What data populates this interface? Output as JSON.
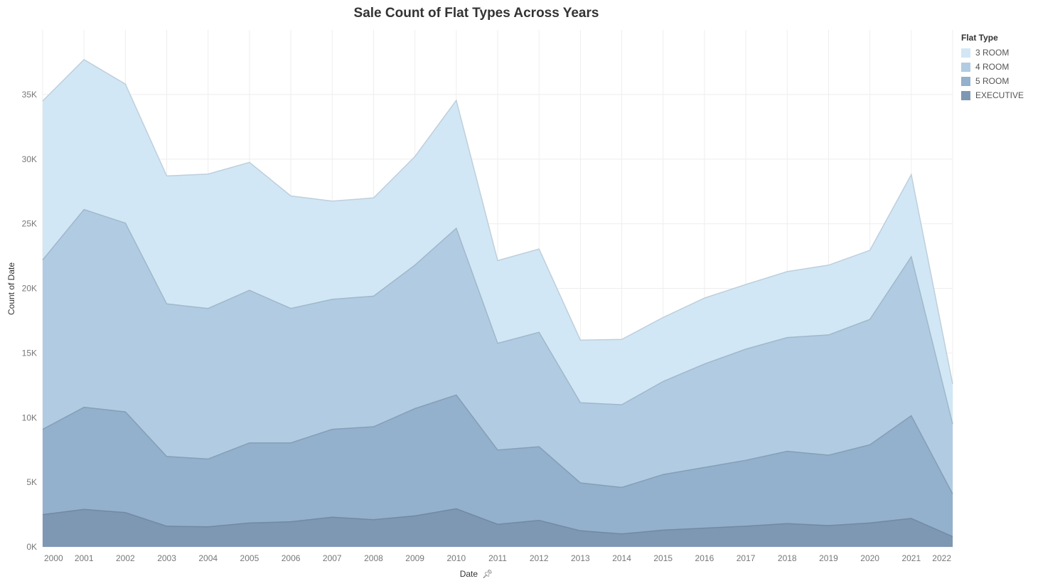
{
  "chart_data": {
    "type": "area",
    "stacked": true,
    "title": "Sale Count of Flat Types Across Years",
    "xlabel": "Date",
    "ylabel": "Count of Date",
    "ylim": [
      0,
      40000
    ],
    "grid": true,
    "legend_position": "top-right",
    "legend_title": "Flat Type",
    "categories": [
      "2000",
      "2001",
      "2002",
      "2003",
      "2004",
      "2005",
      "2006",
      "2007",
      "2008",
      "2009",
      "2010",
      "2011",
      "2012",
      "2013",
      "2014",
      "2015",
      "2016",
      "2017",
      "2018",
      "2019",
      "2020",
      "2021",
      "2022"
    ],
    "y_ticks": [
      0,
      5000,
      10000,
      15000,
      20000,
      25000,
      30000,
      35000
    ],
    "y_tick_labels": [
      "0K",
      "5K",
      "10K",
      "15K",
      "20K",
      "25K",
      "30K",
      "35K"
    ],
    "series": [
      {
        "name": "EXECUTIVE",
        "color": "#7e98b3",
        "values": [
          2500,
          2900,
          2650,
          1600,
          1550,
          1850,
          1950,
          2300,
          2100,
          2400,
          2950,
          1750,
          2050,
          1250,
          1000,
          1300,
          1450,
          1600,
          1800,
          1650,
          1850,
          2200,
          800
        ]
      },
      {
        "name": "5 ROOM",
        "color": "#93b0cc",
        "values": [
          6600,
          7900,
          7800,
          5400,
          5250,
          6200,
          6100,
          6800,
          7200,
          8300,
          8800,
          5750,
          5700,
          3700,
          3600,
          4300,
          4700,
          5100,
          5600,
          5450,
          6050,
          7950,
          3300
        ]
      },
      {
        "name": "4 ROOM",
        "color": "#b1cce2",
        "values": [
          13100,
          15300,
          14600,
          11800,
          11650,
          11800,
          10400,
          10050,
          10100,
          11100,
          12900,
          8250,
          8850,
          6200,
          6400,
          7200,
          8000,
          8600,
          8800,
          9300,
          9700,
          12300,
          5400
        ]
      },
      {
        "name": "3 ROOM",
        "color": "#d2e7f5",
        "values": [
          12300,
          11600,
          10750,
          9900,
          10400,
          9900,
          8700,
          7600,
          7600,
          8400,
          9900,
          6400,
          6450,
          4850,
          5050,
          4950,
          5100,
          5000,
          5100,
          5400,
          5350,
          6350,
          3100
        ]
      }
    ]
  }
}
